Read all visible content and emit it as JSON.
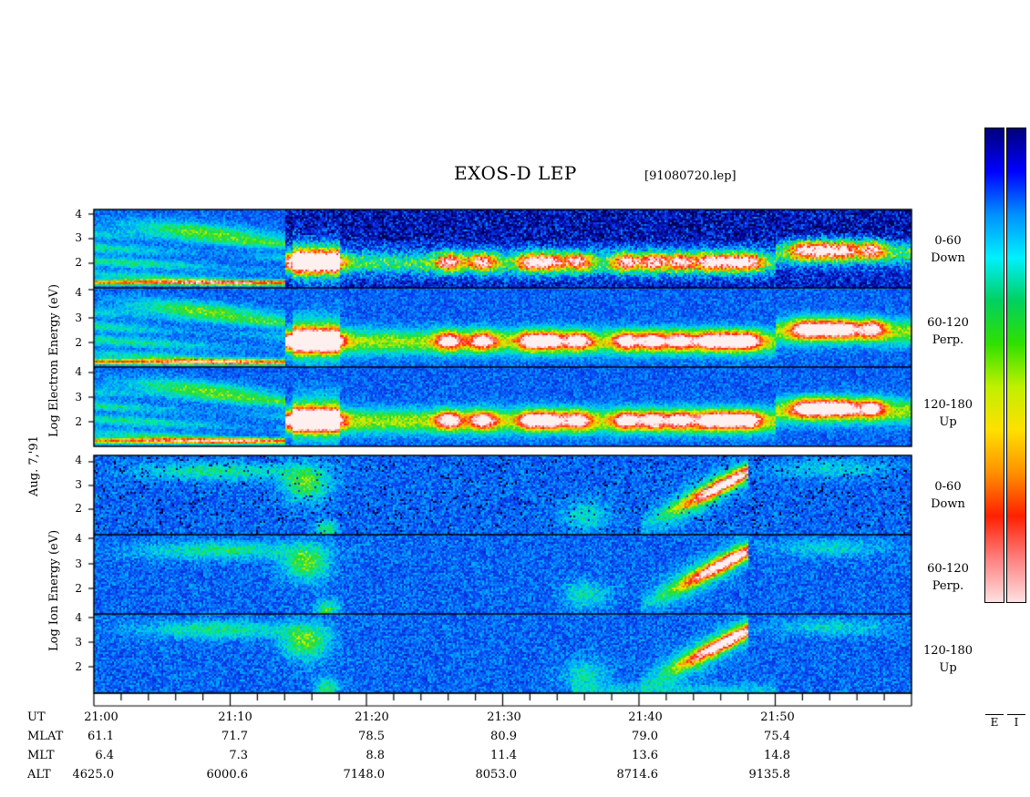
{
  "header": {
    "title": "EXOS-D LEP",
    "filename": "[91080720.lep]"
  },
  "date_label": "Aug. 7,'91",
  "electron_axis_label": [
    "Log",
    "Electron",
    "Energy",
    "(eV)"
  ],
  "ion_axis_label": [
    "Log",
    "Ion",
    "Energy",
    "(eV)"
  ],
  "y_ticks": [
    "4",
    "3",
    "2"
  ],
  "channels": [
    {
      "l1": "0-60",
      "l2": "Down"
    },
    {
      "l1": "60-120",
      "l2": "Perp."
    },
    {
      "l1": "120-180",
      "l2": "Up"
    },
    {
      "l1": "0-60",
      "l2": "Down"
    },
    {
      "l1": "60-120",
      "l2": "Perp."
    },
    {
      "l1": "120-180",
      "l2": "Up"
    }
  ],
  "colorbar": {
    "labels": [
      "E",
      "I"
    ],
    "colors_top_to_bottom": [
      "#00007a",
      "#0000ff",
      "#0090ff",
      "#00f0ff",
      "#00d060",
      "#30e000",
      "#c0f000",
      "#ffe000",
      "#ff9000",
      "#ff2000",
      "#ff8080",
      "#ffe0e0"
    ]
  },
  "time_axis": {
    "rows": [
      {
        "name": "UT",
        "values": [
          "21:00",
          "21:10",
          "21:20",
          "21:30",
          "21:40",
          "21:50"
        ]
      },
      {
        "name": "MLAT",
        "values": [
          "61.1",
          "71.7",
          "78.5",
          "80.9",
          "79.0",
          "75.4"
        ]
      },
      {
        "name": "MLT",
        "values": [
          "6.4",
          "7.3",
          "8.8",
          "11.4",
          "13.6",
          "14.8"
        ]
      },
      {
        "name": "ALT",
        "values": [
          "4625.0",
          "6000.6",
          "7148.0",
          "8053.0",
          "8714.6",
          "9135.8"
        ]
      }
    ]
  },
  "chart_data": {
    "type": "heatmap",
    "title": "EXOS-D LEP",
    "subtitle": "[91080720.lep]",
    "xlabel": "UT",
    "ylabel": "Log Energy (eV)",
    "x_ticks": [
      "21:00",
      "21:10",
      "21:20",
      "21:30",
      "21:40",
      "21:50"
    ],
    "x_range_minutes": [
      0,
      60
    ],
    "y_range_log_eV": [
      1,
      4.2
    ],
    "y_ticks": [
      2,
      3,
      4
    ],
    "panels": [
      {
        "species": "Electron",
        "pitch_angle": "0-60",
        "direction": "Down"
      },
      {
        "species": "Electron",
        "pitch_angle": "60-120",
        "direction": "Perp."
      },
      {
        "species": "Electron",
        "pitch_angle": "120-180",
        "direction": "Up"
      },
      {
        "species": "Ion",
        "pitch_angle": "0-60",
        "direction": "Down"
      },
      {
        "species": "Ion",
        "pitch_angle": "60-120",
        "direction": "Perp."
      },
      {
        "species": "Ion",
        "pitch_angle": "120-180",
        "direction": "Up"
      }
    ],
    "features": {
      "electron_intense_band_log_eV": 2.0,
      "electron_intense_start_minute": 14,
      "ion_intense_peak_minute": 47,
      "ion_intense_peak_log_eV": 3.4
    },
    "colorbar_labels": [
      "E",
      "I"
    ]
  }
}
